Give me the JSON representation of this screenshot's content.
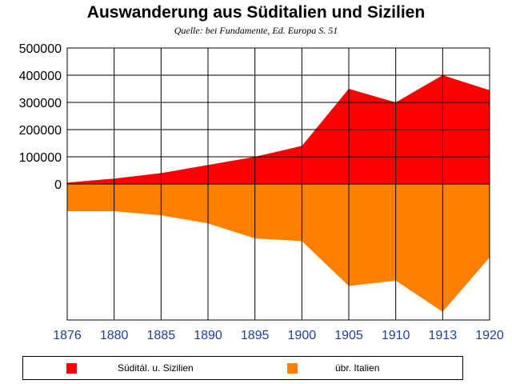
{
  "chart_data": {
    "type": "area",
    "title": "Auswanderung aus Süditalien und Sizilien",
    "subtitle": "Quelle: bei Fundamente, Ed. Europa S. 51",
    "x": [
      "1876",
      "1880",
      "1885",
      "1890",
      "1895",
      "1900",
      "1905",
      "1910",
      "1913",
      "1920"
    ],
    "x_label_color": "#1f3f9f",
    "y_ticks": [
      "500000",
      "400000",
      "300000",
      "200000",
      "100000",
      "0"
    ],
    "ylim": [
      -500000,
      500000
    ],
    "grid": true,
    "legend_position": "bottom",
    "series": [
      {
        "name": "Süditál. u. Sizilien",
        "color": "#ff0000",
        "direction": "above",
        "values": [
          5000,
          20000,
          40000,
          70000,
          100000,
          140000,
          350000,
          300000,
          400000,
          345000
        ]
      },
      {
        "name": "übr. Italien",
        "color": "#ff7f00",
        "direction": "below",
        "values": [
          100000,
          100000,
          115000,
          145000,
          200000,
          210000,
          375000,
          355000,
          470000,
          270000
        ]
      }
    ]
  }
}
